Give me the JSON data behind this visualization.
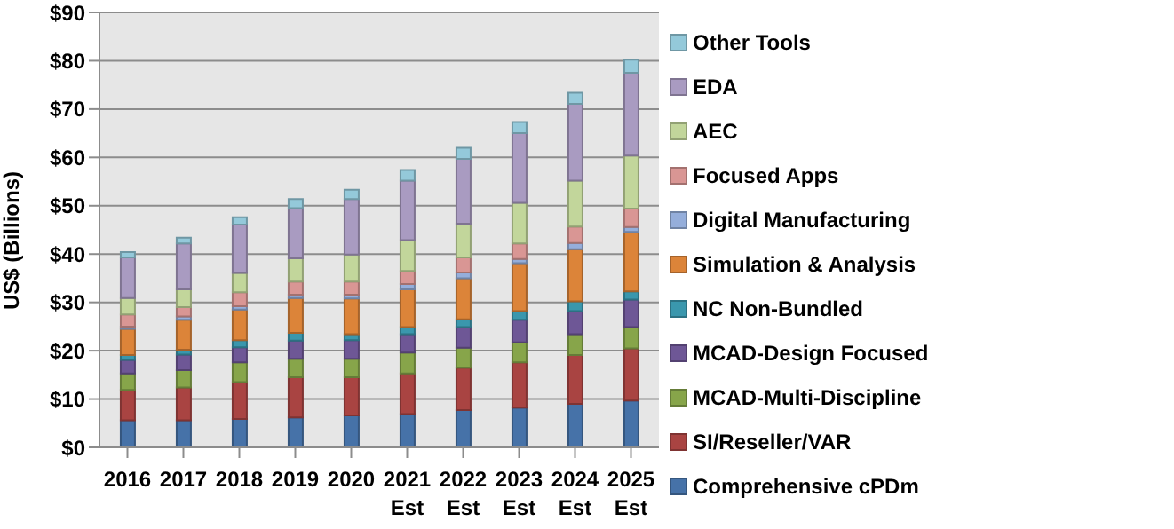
{
  "chart_data": {
    "type": "bar",
    "stacked": true,
    "ylabel": "US$ (Billions)",
    "categories": [
      "2016",
      "2017",
      "2018",
      "2019",
      "2020",
      "2021 Est",
      "2022 Est",
      "2023 Est",
      "2024 Est",
      "2025 Est"
    ],
    "series": [
      {
        "name": "Comprehensive cPDm",
        "color": "#4672a8",
        "values": [
          5.6,
          5.6,
          5.9,
          6.2,
          6.6,
          6.9,
          7.7,
          8.2,
          9.0,
          9.7
        ]
      },
      {
        "name": "SI/Reseller/VAR",
        "color": "#a94442",
        "values": [
          6.3,
          6.8,
          7.6,
          8.3,
          7.9,
          8.4,
          8.8,
          9.4,
          10.1,
          10.8
        ]
      },
      {
        "name": "MCAD-Multi-Discipline",
        "color": "#87a54a",
        "values": [
          3.4,
          3.6,
          4.1,
          3.8,
          3.8,
          4.3,
          4.1,
          4.1,
          4.3,
          4.4
        ]
      },
      {
        "name": "MCAD-Design Focused",
        "color": "#6e5796",
        "values": [
          2.8,
          3.2,
          3.1,
          3.8,
          3.9,
          3.8,
          4.3,
          4.7,
          4.8,
          5.7
        ]
      },
      {
        "name": "NC Non-Bundled",
        "color": "#3a97ad",
        "values": [
          1.0,
          1.0,
          1.5,
          1.6,
          1.2,
          1.5,
          1.6,
          1.8,
          2.0,
          1.7
        ]
      },
      {
        "name": "Simulation & Analysis",
        "color": "#dc8439",
        "values": [
          5.4,
          6.2,
          6.3,
          7.2,
          7.4,
          7.8,
          8.5,
          9.9,
          10.8,
          12.3
        ]
      },
      {
        "name": "Digital Manufacturing",
        "color": "#95aedb",
        "values": [
          0.5,
          0.7,
          0.7,
          0.7,
          0.8,
          1.1,
          1.2,
          0.9,
          1.3,
          1.0
        ]
      },
      {
        "name": "Focused Apps",
        "color": "#d99694",
        "values": [
          2.5,
          1.9,
          2.9,
          2.7,
          2.7,
          2.7,
          3.1,
          3.2,
          3.4,
          3.8
        ]
      },
      {
        "name": "AEC",
        "color": "#c2d69b",
        "values": [
          3.4,
          3.7,
          4.0,
          4.8,
          5.6,
          6.4,
          7.0,
          8.4,
          9.5,
          11.0
        ]
      },
      {
        "name": "EDA",
        "color": "#a99bc1",
        "values": [
          8.4,
          9.5,
          10.0,
          10.4,
          11.5,
          12.3,
          13.4,
          14.4,
          15.9,
          17.1
        ]
      },
      {
        "name": "Other Tools",
        "color": "#94c9da",
        "values": [
          1.1,
          1.2,
          1.5,
          1.9,
          1.9,
          2.2,
          2.3,
          2.3,
          2.3,
          2.7
        ]
      }
    ],
    "ylim": [
      0,
      90
    ],
    "yticks": [
      {
        "value": 0,
        "label": "$0"
      },
      {
        "value": 10,
        "label": "$10"
      },
      {
        "value": 20,
        "label": "$20"
      },
      {
        "value": 30,
        "label": "$30"
      },
      {
        "value": 40,
        "label": "$40"
      },
      {
        "value": 50,
        "label": "$50"
      },
      {
        "value": 60,
        "label": "$60"
      },
      {
        "value": 70,
        "label": "$70"
      },
      {
        "value": 80,
        "label": "$80"
      },
      {
        "value": 90,
        "label": "$90"
      }
    ],
    "grid": "y",
    "legend": "right"
  }
}
